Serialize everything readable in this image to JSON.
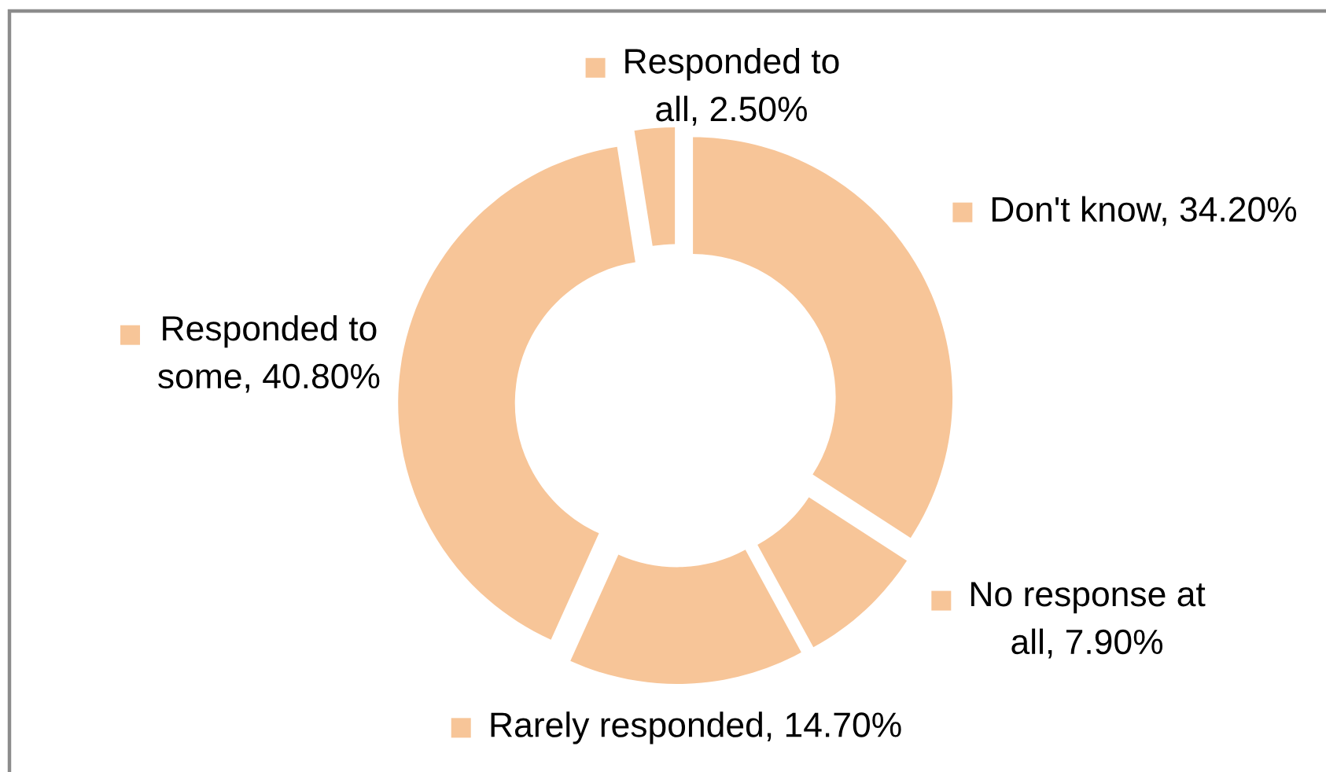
{
  "chart_data": {
    "type": "donut",
    "categories": [
      "Don't know",
      "No response at all",
      "Rarely responded",
      "Responded to some",
      "Responded to all"
    ],
    "values": [
      34.2,
      7.9,
      14.7,
      40.8,
      2.5
    ],
    "value_labels": [
      "34.20%",
      "7.90%",
      "14.70%",
      "40.80%",
      "2.50%"
    ],
    "colors": [
      "#f7c598",
      "#f7c598",
      "#f7c598",
      "#f7c598",
      "#f7c598"
    ],
    "legend": "center"
  }
}
